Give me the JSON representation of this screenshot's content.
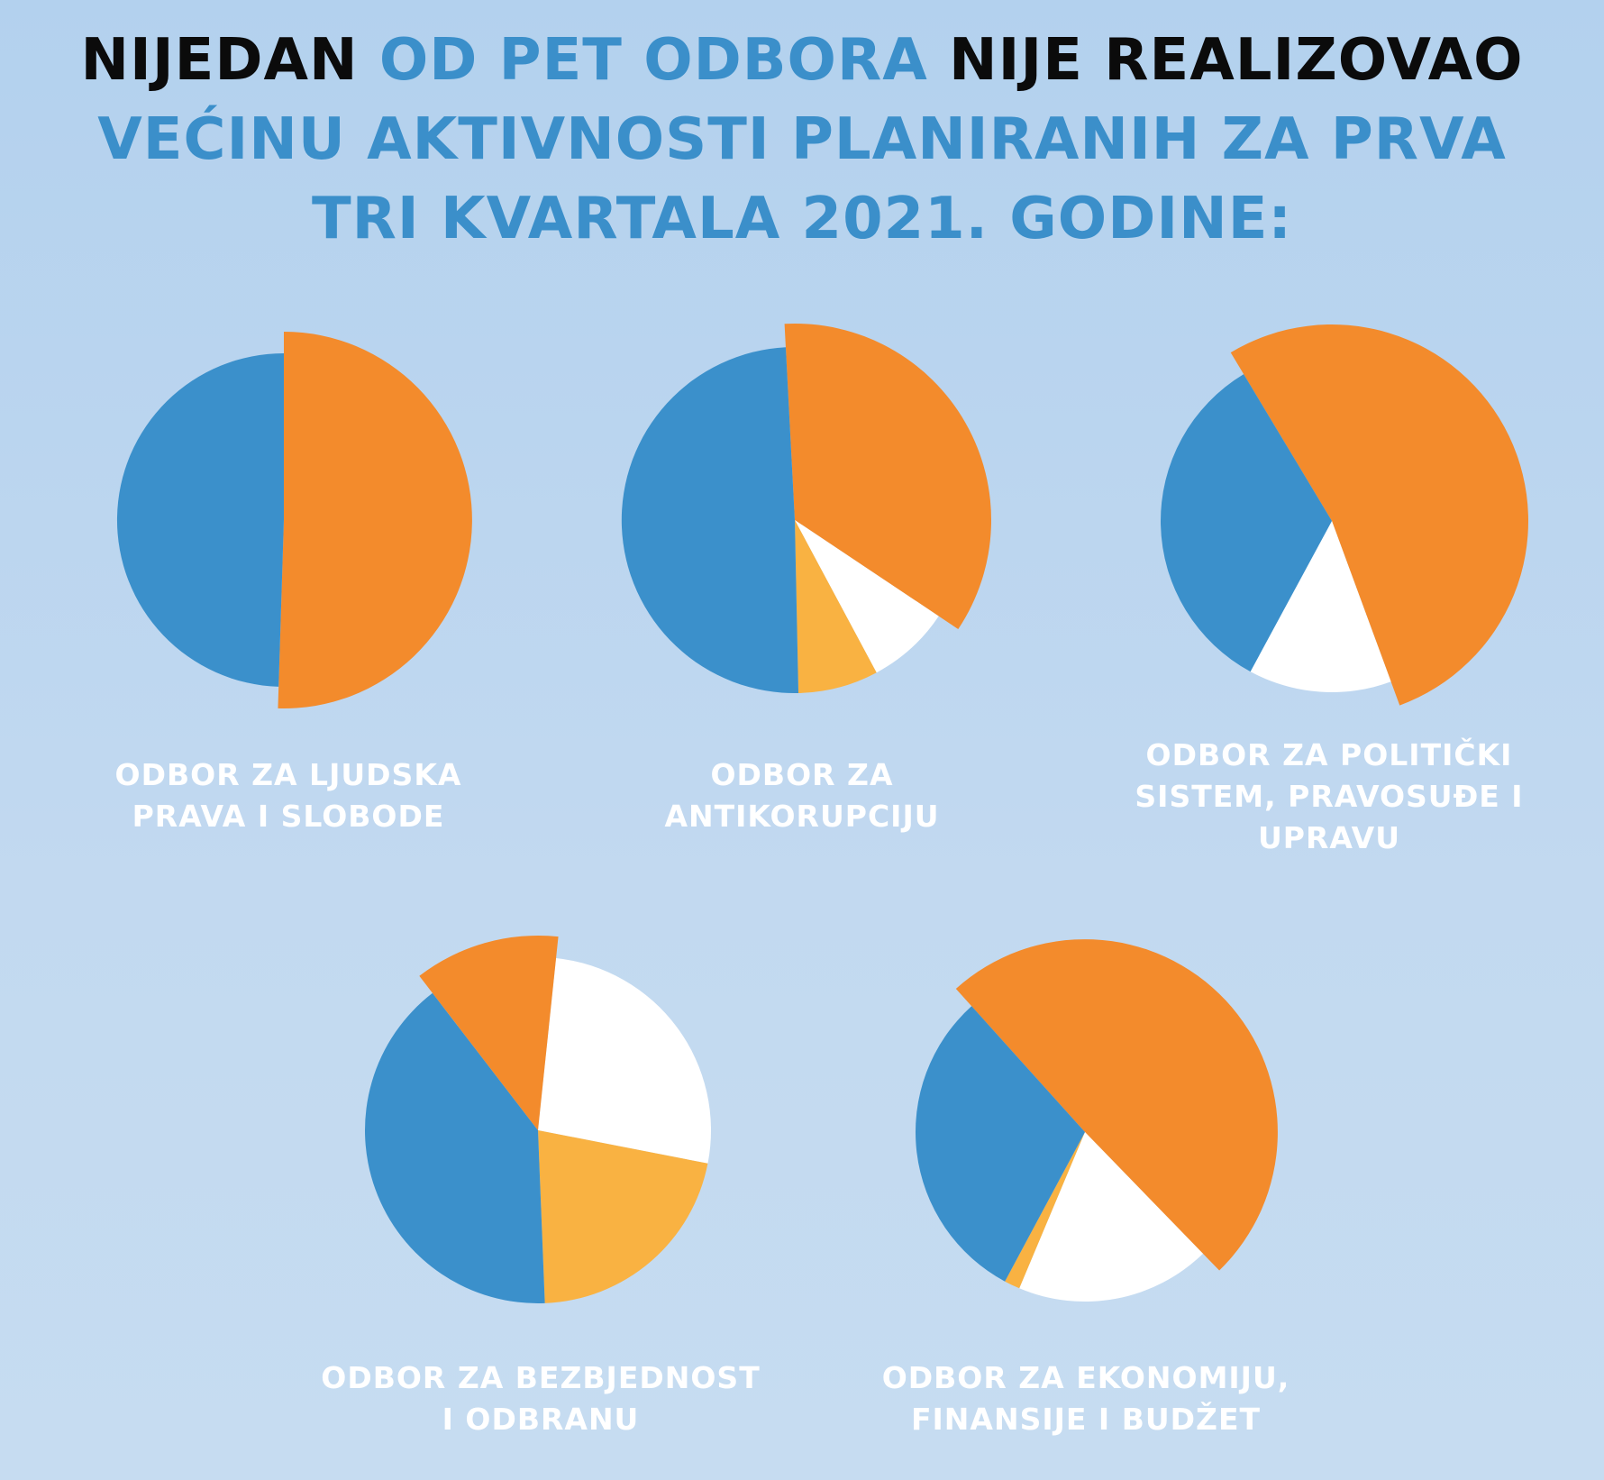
{
  "headline": {
    "line1_part1": "NIJEDAN",
    "line1_part2": "OD PET ODBORA",
    "line1_part3": "NIJE REALIZOVAO",
    "line2": "VEĆINU AKTIVNOSTI PLANIRANIH ZA PRVA",
    "line3": "TRI KVARTALA 2021. GODINE:"
  },
  "colors": {
    "blue": "#3b90cb",
    "orange": "#f38b2c",
    "light_orange": "#f9b242",
    "white": "#ffffff",
    "headline_dark": "#0b0b0b",
    "headline_blue": "#3b8fca"
  },
  "chart_data": [
    {
      "type": "pie",
      "title_lines": [
        "ODBOR ZA LJUDSKA",
        "PRAVA I SLOBODE"
      ],
      "slices": [
        {
          "color": "orange",
          "value": 50.5,
          "exploded": true
        },
        {
          "color": "blue",
          "value": 49.5,
          "exploded": false
        }
      ]
    },
    {
      "type": "pie",
      "title_lines": [
        "ODBOR ZA",
        "ANTIKORUPCIJU"
      ],
      "slices": [
        {
          "color": "orange",
          "value": 35.2,
          "exploded": true
        },
        {
          "color": "white",
          "value": 7.8,
          "exploded": false
        },
        {
          "color": "light_orange",
          "value": 7.5,
          "exploded": false
        },
        {
          "color": "blue",
          "value": 49.5,
          "exploded": false
        }
      ]
    },
    {
      "type": "pie",
      "title_lines": [
        "ODBOR ZA POLITIČKI",
        "SISTEM, PRAVOSUĐE I",
        "UPRAVU"
      ],
      "slices": [
        {
          "color": "orange",
          "value": 53,
          "exploded": true
        },
        {
          "color": "white",
          "value": 13.5,
          "exploded": false
        },
        {
          "color": "blue",
          "value": 33.5,
          "exploded": false
        }
      ]
    },
    {
      "type": "pie",
      "title_lines": [
        "ODBOR ZA BEZBJEDNOST",
        "I ODBRANU"
      ],
      "slices": [
        {
          "color": "white",
          "value": 26.4,
          "exploded": false
        },
        {
          "color": "light_orange",
          "value": 21.3,
          "exploded": false
        },
        {
          "color": "blue",
          "value": 40.2,
          "exploded": false
        },
        {
          "color": "orange",
          "value": 12.1,
          "exploded": true
        }
      ]
    },
    {
      "type": "pie",
      "title_lines": [
        "ODBOR ZA EKONOMIJU,",
        "FINANSIJE I BUDŽET"
      ],
      "slices": [
        {
          "color": "orange",
          "value": 49.4,
          "exploded": true
        },
        {
          "color": "white",
          "value": 18.6,
          "exploded": false
        },
        {
          "color": "light_orange",
          "value": 1.5,
          "exploded": false
        },
        {
          "color": "blue",
          "value": 30.5,
          "exploded": false
        }
      ]
    }
  ]
}
